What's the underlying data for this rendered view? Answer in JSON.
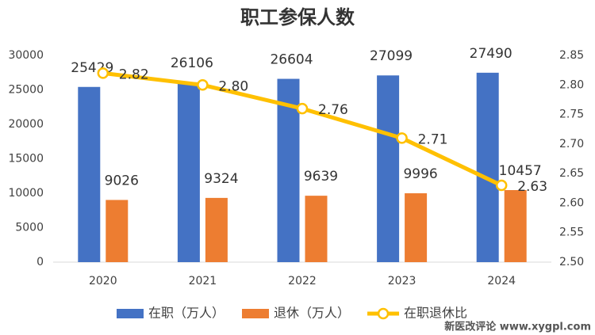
{
  "chart_data": {
    "type": "bar",
    "title": "职工参保人数",
    "categories": [
      "2020",
      "2021",
      "2022",
      "2023",
      "2024"
    ],
    "series": [
      {
        "name": "在职（万人）",
        "color": "#4472C4",
        "values": [
          25429,
          26106,
          26604,
          27099,
          27490
        ]
      },
      {
        "name": "退休（万人）",
        "color": "#ED7D31",
        "values": [
          9026,
          9324,
          9639,
          9996,
          10457
        ]
      },
      {
        "name": "在职退休比",
        "type": "line",
        "axis": "y2",
        "color": "#FFC000",
        "values": [
          2.82,
          2.8,
          2.76,
          2.71,
          2.63
        ],
        "value_labels": [
          "2.82",
          "2.80",
          "2.76",
          "2.71",
          "2.63"
        ]
      }
    ],
    "ylim": [
      0,
      30000
    ],
    "yticks": [
      0,
      5000,
      10000,
      15000,
      20000,
      25000,
      30000
    ],
    "y2lim": [
      2.5,
      2.85
    ],
    "y2ticks": [
      {
        "value": 2.5,
        "label": "2.50"
      },
      2.55,
      {
        "value": 2.6,
        "label": "2.60"
      },
      2.65,
      {
        "value": 2.7,
        "label": "2.70"
      },
      2.75,
      {
        "value": 2.8,
        "label": "2.80"
      },
      2.85
    ],
    "legend": "bottom"
  },
  "watermark": "新医改评论 www.xygpl.com"
}
